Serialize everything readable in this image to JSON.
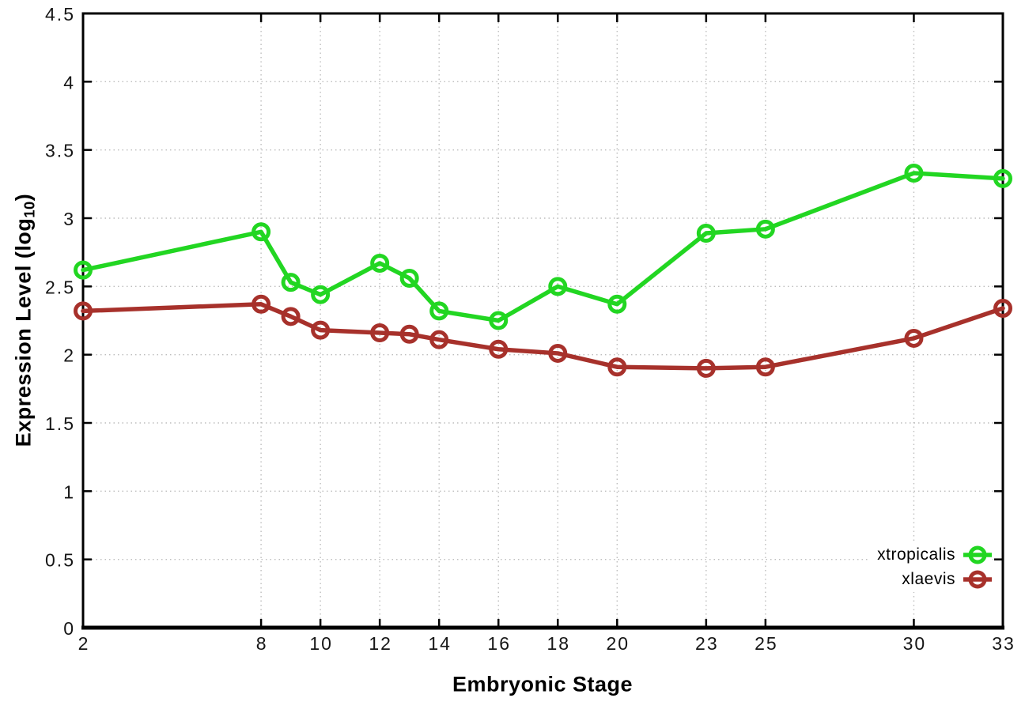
{
  "chart_data": {
    "type": "line",
    "title": "",
    "xlabel": "Embryonic Stage",
    "ylabel": "Expression Level (log10)",
    "ylabel_parts": {
      "main": "Expression Level (log",
      "sub": "10",
      "end": ")"
    },
    "x": [
      2,
      8,
      9,
      10,
      12,
      13,
      14,
      16,
      18,
      20,
      23,
      25,
      30,
      33
    ],
    "series": [
      {
        "name": "xtropicalis",
        "color": "#22d622",
        "values": [
          2.62,
          2.9,
          2.53,
          2.44,
          2.67,
          2.56,
          2.32,
          2.25,
          2.5,
          2.37,
          2.89,
          2.92,
          3.33,
          3.29
        ]
      },
      {
        "name": "xlaevis",
        "color": "#a7312b",
        "values": [
          2.32,
          2.37,
          2.28,
          2.18,
          2.16,
          2.15,
          2.11,
          2.04,
          2.01,
          1.91,
          1.9,
          1.91,
          2.12,
          2.34
        ]
      }
    ],
    "xlim": [
      2,
      33
    ],
    "ylim": [
      0,
      4.5
    ],
    "xticks": [
      2,
      8,
      10,
      12,
      14,
      16,
      18,
      20,
      23,
      25,
      30,
      33
    ],
    "yticks": [
      0,
      0.5,
      1,
      1.5,
      2,
      2.5,
      3,
      3.5,
      4,
      4.5
    ],
    "ytick_labels": [
      "0",
      "0.5",
      "1",
      "1.5",
      "2",
      "2.5",
      "3",
      "3.5",
      "4",
      "4.5"
    ],
    "grid": true,
    "legend_position": "bottom-right",
    "style": {
      "grid_color": "#bdbdbd",
      "axis_color": "#000000",
      "background": "#ffffff",
      "marker": "open-circle"
    }
  }
}
